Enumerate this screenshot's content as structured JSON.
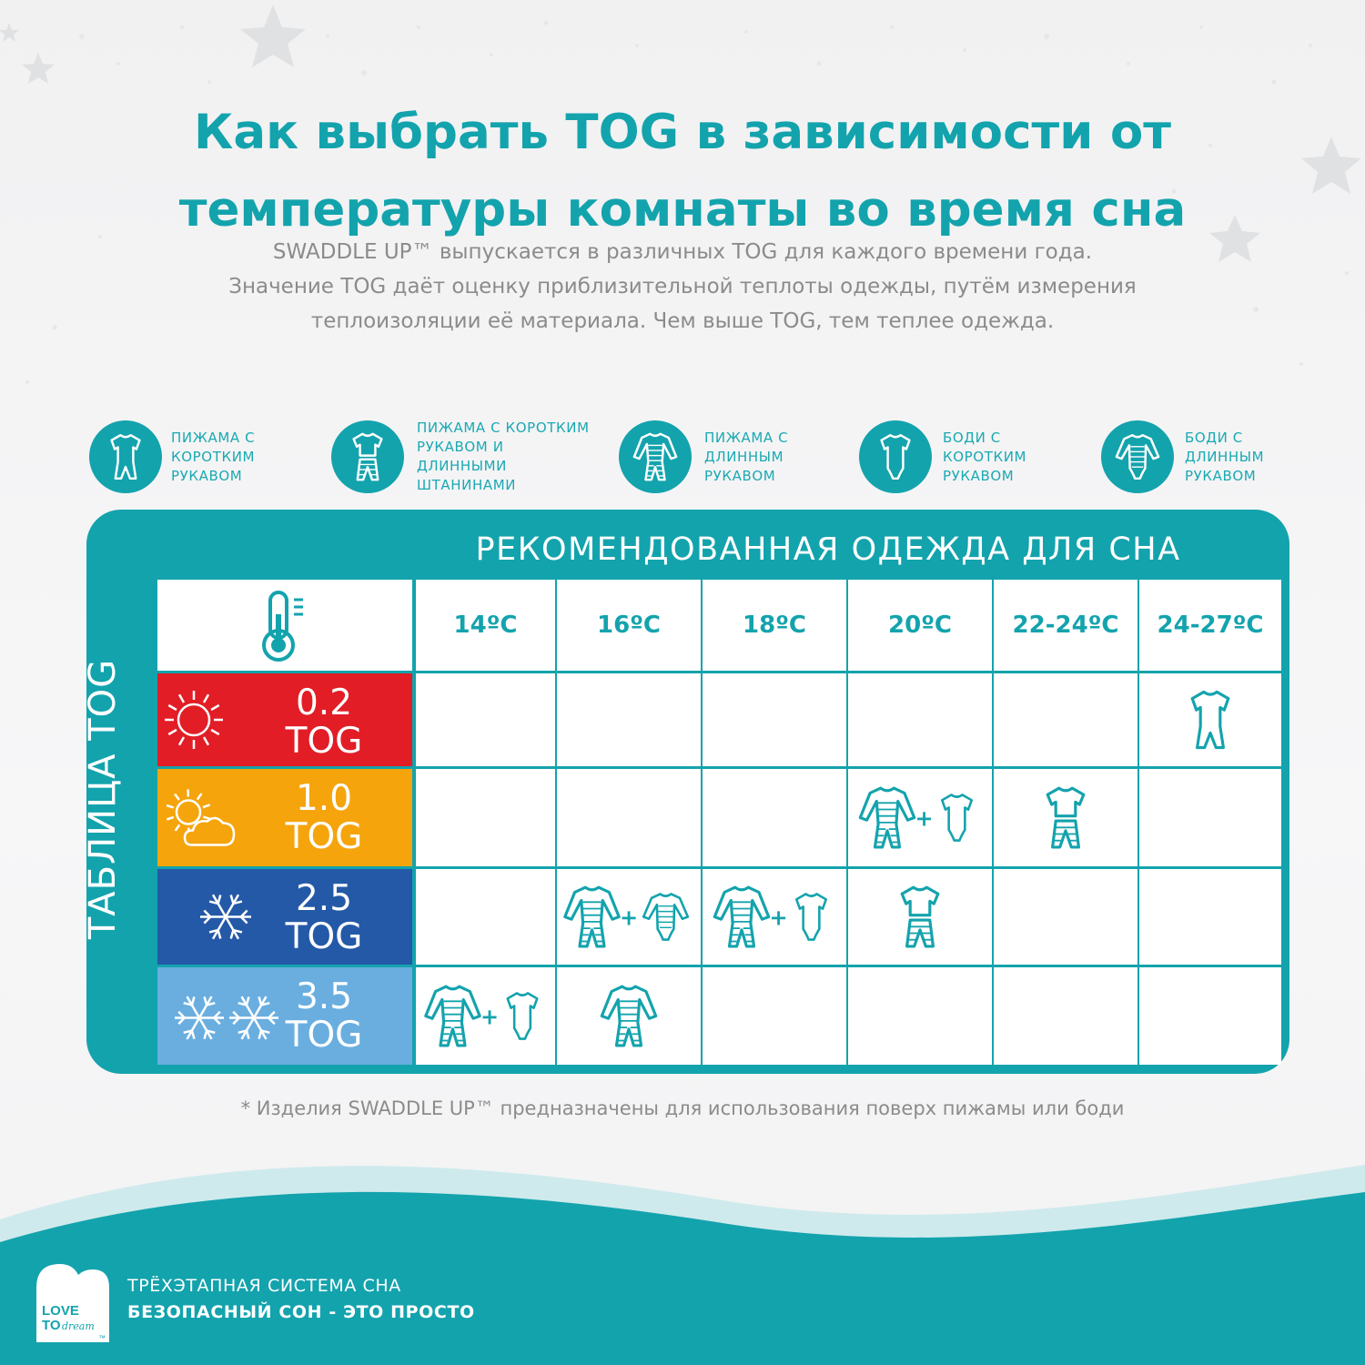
{
  "title_line1": "Как выбрать TOG в зависимости от",
  "title_line2": "температуры комнаты во время сна",
  "intro_line1": "SWADDLE UP™ выпускается в различных TOG для каждого времени года.",
  "intro_line2": "Значение TOG даёт оценку приблизительной теплоты одежды, путём измерения",
  "intro_line3": "теплоизоляции её материала. Чем выше TOG, тем теплее одежда.",
  "legend": [
    {
      "line1": "ПИЖАМА С",
      "line2": "КОРОТКИМ",
      "line3": "РУКАВОМ",
      "line4": "",
      "icon": "romper-short-sleeve-icon"
    },
    {
      "line1": "ПИЖАМА С КОРОТКИМ",
      "line2": "РУКАВОМ И",
      "line3": "ДЛИННЫМИ",
      "line4": "ШТАНИНАМИ",
      "icon": "shirt-and-pants-icon"
    },
    {
      "line1": "ПИЖАМА С",
      "line2": "ДЛИННЫМ",
      "line3": "РУКАВОМ",
      "line4": "",
      "icon": "long-sleeve-pajama-icon"
    },
    {
      "line1": "БОДИ С",
      "line2": "КОРОТКИМ",
      "line3": "РУКАВОМ",
      "line4": "",
      "icon": "short-sleeve-bodysuit-icon"
    },
    {
      "line1": "БОДИ С",
      "line2": "ДЛИННЫМ",
      "line3": "РУКАВОМ",
      "line4": "",
      "icon": "long-sleeve-bodysuit-icon"
    }
  ],
  "table": {
    "title": "РЕКОМЕНДОВАННАЯ ОДЕЖДА ДЛЯ СНА",
    "side_label": "ТАБЛИЦА TOG",
    "header_icon": "thermometer-icon",
    "temperatures": [
      "14ºC",
      "16ºC",
      "18ºC",
      "20ºC",
      "22-24ºC",
      "24-27ºC"
    ],
    "rows": [
      {
        "value": "0.2",
        "unit": "TOG",
        "color": "#e21d26",
        "icon": "sun-icon",
        "cells": [
          [],
          [],
          [],
          [],
          [],
          [
            "romper-short-sleeve-icon"
          ]
        ]
      },
      {
        "value": "1.0",
        "unit": "TOG",
        "color": "#f5a40c",
        "icon": "sun-cloud-icon",
        "cells": [
          [],
          [],
          [],
          [
            "long-sleeve-pajama-icon",
            "short-sleeve-bodysuit-icon"
          ],
          [
            "shirt-and-pants-icon"
          ],
          []
        ]
      },
      {
        "value": "2.5",
        "unit": "TOG",
        "color": "#2459a7",
        "icon": "snowflake-icon",
        "cells": [
          [],
          [
            "long-sleeve-pajama-icon",
            "long-sleeve-bodysuit-icon"
          ],
          [
            "long-sleeve-pajama-icon",
            "short-sleeve-bodysuit-icon"
          ],
          [
            "shirt-and-pants-icon"
          ],
          [],
          []
        ]
      },
      {
        "value": "3.5",
        "unit": "TOG",
        "color": "#6aaee0",
        "icon": "double-snowflake-icon",
        "cells": [
          [
            "long-sleeve-pajama-icon",
            "short-sleeve-bodysuit-icon"
          ],
          [
            "long-sleeve-pajama-icon"
          ],
          [],
          [],
          [],
          []
        ]
      }
    ],
    "plus_sign": "+"
  },
  "footnote": "* Изделия SWADDLE UP™ предназначены для использования поверх пижамы или боди",
  "footer": {
    "line1": "ТРЁХЭТАПНАЯ СИСТЕМА СНА",
    "line2": "БЕЗОПАСНЫЙ СОН - ЭТО ПРОСТО",
    "logo_text_1": "LOVE",
    "logo_text_2": "TO",
    "logo_text_3": "dream",
    "logo_tm": "™"
  },
  "colors": {
    "teal": "#13a3ad",
    "text_gray": "#8b8b8b"
  }
}
